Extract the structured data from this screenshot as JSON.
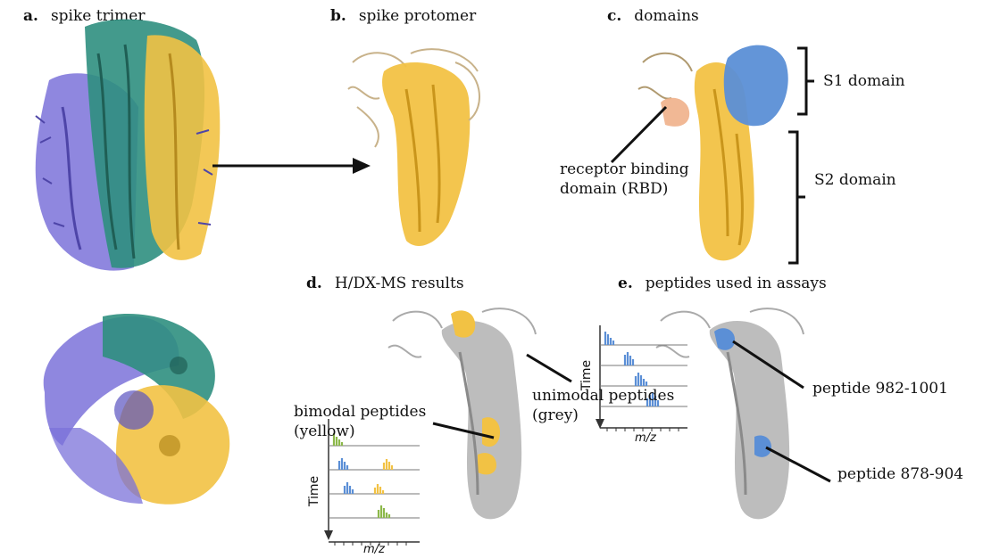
{
  "panels": {
    "a": {
      "letter": "a.",
      "title": "spike trimer"
    },
    "b": {
      "letter": "b.",
      "title": "spike protomer"
    },
    "c": {
      "letter": "c.",
      "title": "domains"
    },
    "d": {
      "letter": "d.",
      "title": "H/DX-MS results"
    },
    "e": {
      "letter": "e.",
      "title": "peptides used in assays"
    }
  },
  "annotations": {
    "s1": "S1 domain",
    "s2": "S2 domain",
    "rbd_line1": "receptor binding",
    "rbd_line2": "domain (RBD)",
    "bimodal_line1": "bimodal peptides",
    "bimodal_line2": "(yellow)",
    "unimodal_line1": "unimodal peptides",
    "unimodal_line2": "(grey)",
    "peptide_a": "peptide 982-1001",
    "peptide_b": "peptide 878-904"
  },
  "spectra": {
    "time_label": "Time",
    "x_label": "m/z"
  },
  "colors": {
    "protomer_yellow": "#f2c244",
    "trimer_teal": "#2f8f7f",
    "trimer_purple": "#7b72d9",
    "s1_blue": "#5b8fd6",
    "rbd_salmon": "#f0b08a",
    "grey": "#b9b9b9",
    "spectra_green": "#8cb84a",
    "spectra_blue": "#5b8fd6",
    "spectra_yellow": "#f2c244"
  }
}
